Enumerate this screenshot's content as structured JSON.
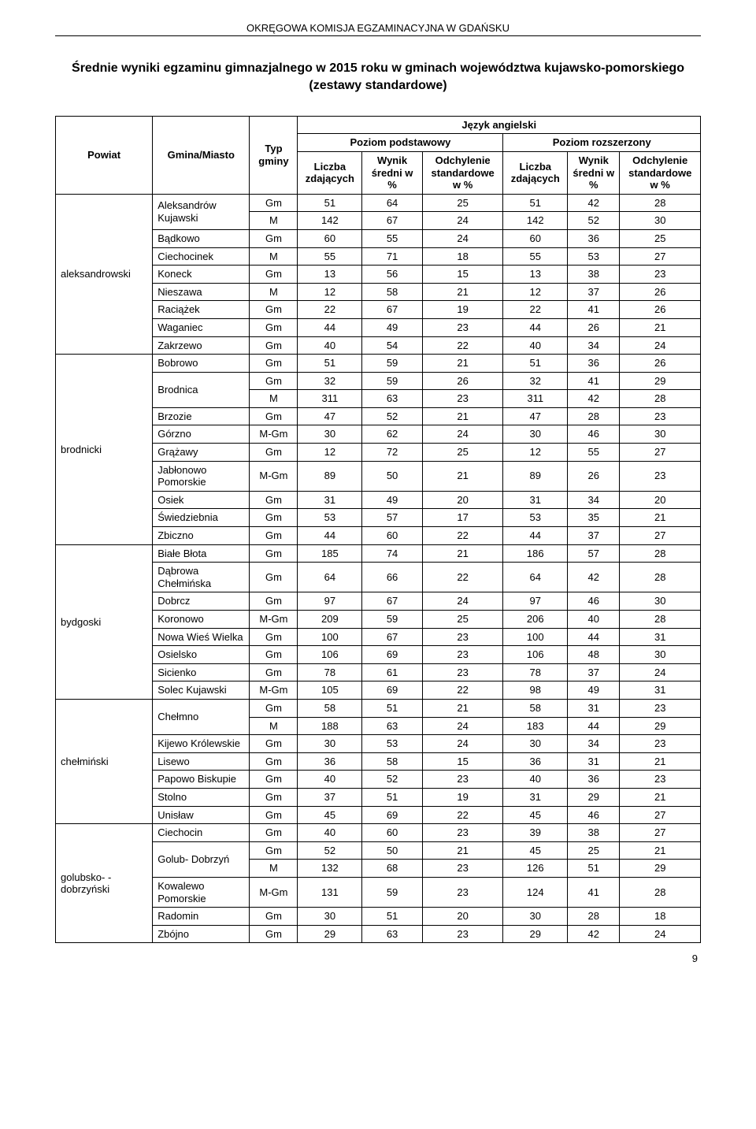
{
  "header": "OKRĘGOWA KOMISJA EGZAMINACYJNA W GDAŃSKU",
  "title_line1": "Średnie wyniki egzaminu gimnazjalnego w 2015 roku w gminach województwa kujawsko-pomorskiego",
  "title_line2": "(zestawy standardowe)",
  "page_number": "9",
  "columns": {
    "powiat": "Powiat",
    "gmina": "Gmina/Miasto",
    "typ": "Typ gminy",
    "lang": "Język angielski",
    "basic": "Poziom podstawowy",
    "ext": "Poziom rozszerzony",
    "n": "Liczba zdających",
    "mean": "Wynik średni w %",
    "mean2": "Wynik średni w %",
    "sd": "Odchylenie standardowe w %"
  },
  "rows": [
    {
      "powiat": "aleksandrowski",
      "powiat_span": 9,
      "gmina": "Aleksandrów Kujawski",
      "gmina_span": 2,
      "typ": "Gm",
      "n1": "51",
      "m1": "64",
      "s1": "25",
      "n2": "51",
      "m2": "42",
      "s2": "28"
    },
    {
      "typ": "M",
      "n1": "142",
      "m1": "67",
      "s1": "24",
      "n2": "142",
      "m2": "52",
      "s2": "30"
    },
    {
      "gmina": "Bądkowo",
      "typ": "Gm",
      "n1": "60",
      "m1": "55",
      "s1": "24",
      "n2": "60",
      "m2": "36",
      "s2": "25"
    },
    {
      "gmina": "Ciechocinek",
      "typ": "M",
      "n1": "55",
      "m1": "71",
      "s1": "18",
      "n2": "55",
      "m2": "53",
      "s2": "27"
    },
    {
      "gmina": "Koneck",
      "typ": "Gm",
      "n1": "13",
      "m1": "56",
      "s1": "15",
      "n2": "13",
      "m2": "38",
      "s2": "23"
    },
    {
      "gmina": "Nieszawa",
      "typ": "M",
      "n1": "12",
      "m1": "58",
      "s1": "21",
      "n2": "12",
      "m2": "37",
      "s2": "26"
    },
    {
      "gmina": "Raciążek",
      "typ": "Gm",
      "n1": "22",
      "m1": "67",
      "s1": "19",
      "n2": "22",
      "m2": "41",
      "s2": "26"
    },
    {
      "gmina": "Waganiec",
      "typ": "Gm",
      "n1": "44",
      "m1": "49",
      "s1": "23",
      "n2": "44",
      "m2": "26",
      "s2": "21"
    },
    {
      "gmina": "Zakrzewo",
      "typ": "Gm",
      "n1": "40",
      "m1": "54",
      "s1": "22",
      "n2": "40",
      "m2": "34",
      "s2": "24"
    },
    {
      "powiat": "brodnicki",
      "powiat_span": 10,
      "gmina": "Bobrowo",
      "typ": "Gm",
      "n1": "51",
      "m1": "59",
      "s1": "21",
      "n2": "51",
      "m2": "36",
      "s2": "26"
    },
    {
      "gmina": "Brodnica",
      "gmina_span": 2,
      "typ": "Gm",
      "n1": "32",
      "m1": "59",
      "s1": "26",
      "n2": "32",
      "m2": "41",
      "s2": "29"
    },
    {
      "typ": "M",
      "n1": "311",
      "m1": "63",
      "s1": "23",
      "n2": "311",
      "m2": "42",
      "s2": "28"
    },
    {
      "gmina": "Brzozie",
      "typ": "Gm",
      "n1": "47",
      "m1": "52",
      "s1": "21",
      "n2": "47",
      "m2": "28",
      "s2": "23"
    },
    {
      "gmina": "Górzno",
      "typ": "M-Gm",
      "n1": "30",
      "m1": "62",
      "s1": "24",
      "n2": "30",
      "m2": "46",
      "s2": "30"
    },
    {
      "gmina": "Grążawy",
      "typ": "Gm",
      "n1": "12",
      "m1": "72",
      "s1": "25",
      "n2": "12",
      "m2": "55",
      "s2": "27"
    },
    {
      "gmina": "Jabłonowo Pomorskie",
      "typ": "M-Gm",
      "n1": "89",
      "m1": "50",
      "s1": "21",
      "n2": "89",
      "m2": "26",
      "s2": "23"
    },
    {
      "gmina": "Osiek",
      "typ": "Gm",
      "n1": "31",
      "m1": "49",
      "s1": "20",
      "n2": "31",
      "m2": "34",
      "s2": "20"
    },
    {
      "gmina": "Świedziebnia",
      "typ": "Gm",
      "n1": "53",
      "m1": "57",
      "s1": "17",
      "n2": "53",
      "m2": "35",
      "s2": "21"
    },
    {
      "gmina": "Zbiczno",
      "typ": "Gm",
      "n1": "44",
      "m1": "60",
      "s1": "22",
      "n2": "44",
      "m2": "37",
      "s2": "27"
    },
    {
      "powiat": "bydgoski",
      "powiat_span": 8,
      "gmina": "Białe Błota",
      "typ": "Gm",
      "n1": "185",
      "m1": "74",
      "s1": "21",
      "n2": "186",
      "m2": "57",
      "s2": "28"
    },
    {
      "gmina": "Dąbrowa Chełmińska",
      "typ": "Gm",
      "n1": "64",
      "m1": "66",
      "s1": "22",
      "n2": "64",
      "m2": "42",
      "s2": "28"
    },
    {
      "gmina": "Dobrcz",
      "typ": "Gm",
      "n1": "97",
      "m1": "67",
      "s1": "24",
      "n2": "97",
      "m2": "46",
      "s2": "30"
    },
    {
      "gmina": "Koronowo",
      "typ": "M-Gm",
      "n1": "209",
      "m1": "59",
      "s1": "25",
      "n2": "206",
      "m2": "40",
      "s2": "28"
    },
    {
      "gmina": "Nowa Wieś Wielka",
      "typ": "Gm",
      "n1": "100",
      "m1": "67",
      "s1": "23",
      "n2": "100",
      "m2": "44",
      "s2": "31"
    },
    {
      "gmina": "Osielsko",
      "typ": "Gm",
      "n1": "106",
      "m1": "69",
      "s1": "23",
      "n2": "106",
      "m2": "48",
      "s2": "30"
    },
    {
      "gmina": "Sicienko",
      "typ": "Gm",
      "n1": "78",
      "m1": "61",
      "s1": "23",
      "n2": "78",
      "m2": "37",
      "s2": "24"
    },
    {
      "gmina": "Solec Kujawski",
      "typ": "M-Gm",
      "n1": "105",
      "m1": "69",
      "s1": "22",
      "n2": "98",
      "m2": "49",
      "s2": "31"
    },
    {
      "powiat": "chełmiński",
      "powiat_span": 7,
      "gmina": "Chełmno",
      "gmina_span": 2,
      "typ": "Gm",
      "n1": "58",
      "m1": "51",
      "s1": "21",
      "n2": "58",
      "m2": "31",
      "s2": "23"
    },
    {
      "typ": "M",
      "n1": "188",
      "m1": "63",
      "s1": "24",
      "n2": "183",
      "m2": "44",
      "s2": "29"
    },
    {
      "gmina": "Kijewo Królewskie",
      "typ": "Gm",
      "n1": "30",
      "m1": "53",
      "s1": "24",
      "n2": "30",
      "m2": "34",
      "s2": "23"
    },
    {
      "gmina": "Lisewo",
      "typ": "Gm",
      "n1": "36",
      "m1": "58",
      "s1": "15",
      "n2": "36",
      "m2": "31",
      "s2": "21"
    },
    {
      "gmina": "Papowo Biskupie",
      "typ": "Gm",
      "n1": "40",
      "m1": "52",
      "s1": "23",
      "n2": "40",
      "m2": "36",
      "s2": "23"
    },
    {
      "gmina": "Stolno",
      "typ": "Gm",
      "n1": "37",
      "m1": "51",
      "s1": "19",
      "n2": "31",
      "m2": "29",
      "s2": "21"
    },
    {
      "gmina": "Unisław",
      "typ": "Gm",
      "n1": "45",
      "m1": "69",
      "s1": "22",
      "n2": "45",
      "m2": "46",
      "s2": "27"
    },
    {
      "powiat": "golubsko- -dobrzyński",
      "powiat_span": 6,
      "gmina": "Ciechocin",
      "typ": "Gm",
      "n1": "40",
      "m1": "60",
      "s1": "23",
      "n2": "39",
      "m2": "38",
      "s2": "27"
    },
    {
      "gmina": "Golub- Dobrzyń",
      "gmina_span": 2,
      "typ": "Gm",
      "n1": "52",
      "m1": "50",
      "s1": "21",
      "n2": "45",
      "m2": "25",
      "s2": "21"
    },
    {
      "typ": "M",
      "n1": "132",
      "m1": "68",
      "s1": "23",
      "n2": "126",
      "m2": "51",
      "s2": "29"
    },
    {
      "gmina": "Kowalewo Pomorskie",
      "typ": "M-Gm",
      "n1": "131",
      "m1": "59",
      "s1": "23",
      "n2": "124",
      "m2": "41",
      "s2": "28"
    },
    {
      "gmina": "Radomin",
      "typ": "Gm",
      "n1": "30",
      "m1": "51",
      "s1": "20",
      "n2": "30",
      "m2": "28",
      "s2": "18"
    },
    {
      "gmina": "Zbójno",
      "typ": "Gm",
      "n1": "29",
      "m1": "63",
      "s1": "23",
      "n2": "29",
      "m2": "42",
      "s2": "24"
    }
  ]
}
